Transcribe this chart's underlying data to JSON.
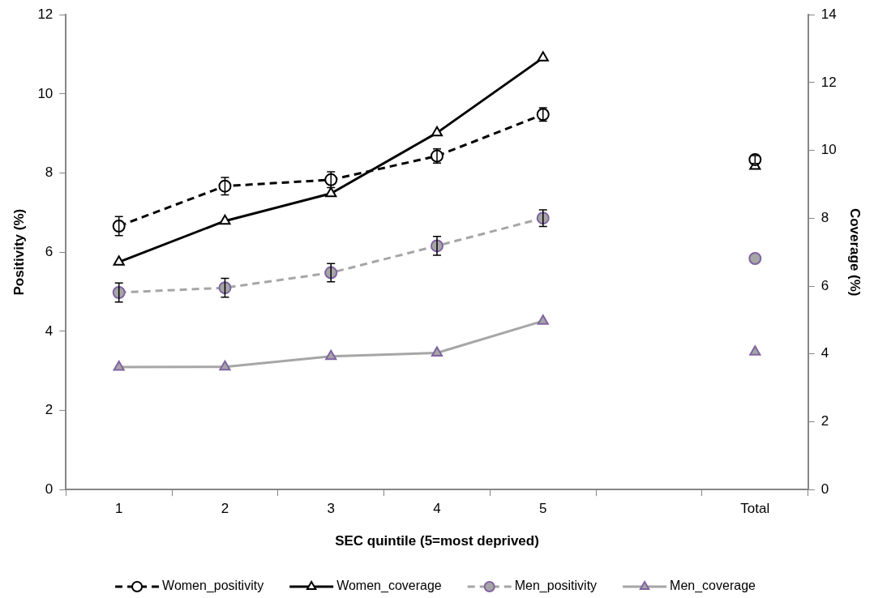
{
  "chart_data": {
    "type": "line",
    "xlabel": "SEC quintile (5=most deprived)",
    "ylabel": "Positivity (%)",
    "y2label": "Coverage (%)",
    "categories": [
      "1",
      "2",
      "3",
      "4",
      "5",
      null,
      "Total"
    ],
    "ylim": [
      0,
      12
    ],
    "yticks": [
      0,
      2,
      4,
      6,
      8,
      10,
      12
    ],
    "y2lim": [
      0,
      14
    ],
    "y2ticks": [
      0,
      2,
      4,
      6,
      8,
      10,
      12,
      14
    ],
    "grid": false,
    "legend": "bottom",
    "series": [
      {
        "name": "Women_positivity",
        "color": "#000000",
        "marker": "circle",
        "line_style": "dashed",
        "values": [
          6.66,
          7.67,
          7.83,
          8.43,
          9.48,
          null,
          8.34
        ],
        "errors": [
          0.24,
          0.22,
          0.2,
          0.18,
          0.17,
          null,
          0.1
        ]
      },
      {
        "name": "Women_coverage",
        "color": "#000000",
        "marker": "triangle",
        "line_style": "solid",
        "axis": "y2",
        "values": [
          6.71,
          7.92,
          8.73,
          10.52,
          12.73,
          null,
          9.54
        ]
      },
      {
        "name": "Men_positivity",
        "color": "#a6a6a6",
        "marker": "circle",
        "line_style": "dashed",
        "values": [
          4.98,
          5.1,
          5.48,
          6.16,
          6.86,
          null,
          5.84
        ],
        "errors": [
          0.24,
          0.24,
          0.23,
          0.24,
          0.21,
          null,
          null
        ]
      },
      {
        "name": "Men_coverage",
        "color": "#a6a6a6",
        "marker": "triangle",
        "line_style": "solid",
        "axis": "y2",
        "values": [
          3.61,
          3.62,
          3.93,
          4.03,
          4.97,
          null,
          4.06
        ]
      }
    ]
  }
}
